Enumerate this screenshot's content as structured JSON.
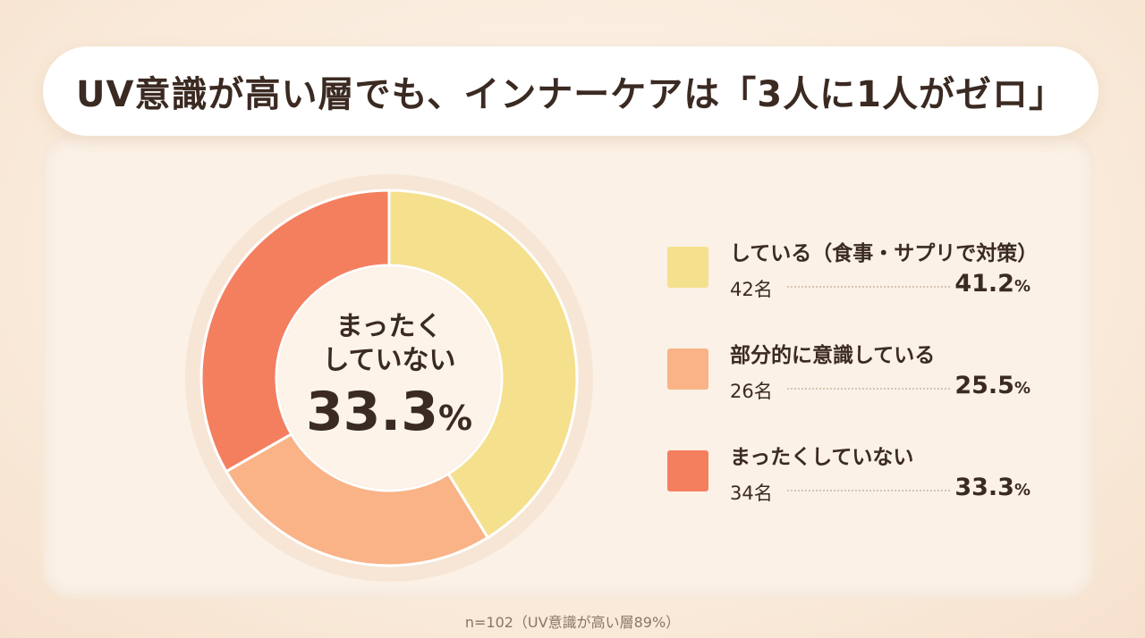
{
  "title": "UV意識が高い層でも、インナーケアは「3人に1人がゼロ」",
  "center": {
    "line1": "まったく",
    "line2": "していない",
    "value": "33.3",
    "unit": "%"
  },
  "legend": [
    {
      "label": "している（食事・サプリで対策）",
      "count": "42名",
      "value": "41.2",
      "unit": "%",
      "color": "#f5e08e"
    },
    {
      "label": "部分的に意識している",
      "count": "26名",
      "value": "25.5",
      "unit": "%",
      "color": "#f9b387"
    },
    {
      "label": "まったくしていない",
      "count": "34名",
      "value": "33.3",
      "unit": "%",
      "color": "#f47f5f"
    }
  ],
  "footnote": "n=102（UV意識が高い層89%）",
  "chart_data": {
    "type": "pie",
    "donut": true,
    "title": "UV意識が高い層でも、インナーケアは「3人に1人がゼロ」",
    "categories": [
      "している（食事・サプリで対策）",
      "部分的に意識している",
      "まったくしていない"
    ],
    "values": [
      41.2,
      25.5,
      33.3
    ],
    "counts": [
      42,
      26,
      34
    ],
    "colors": [
      "#f5e08e",
      "#f9b387",
      "#f47f5f"
    ],
    "legend_position": "right",
    "note": "n=102（UV意識が高い層89%）"
  }
}
